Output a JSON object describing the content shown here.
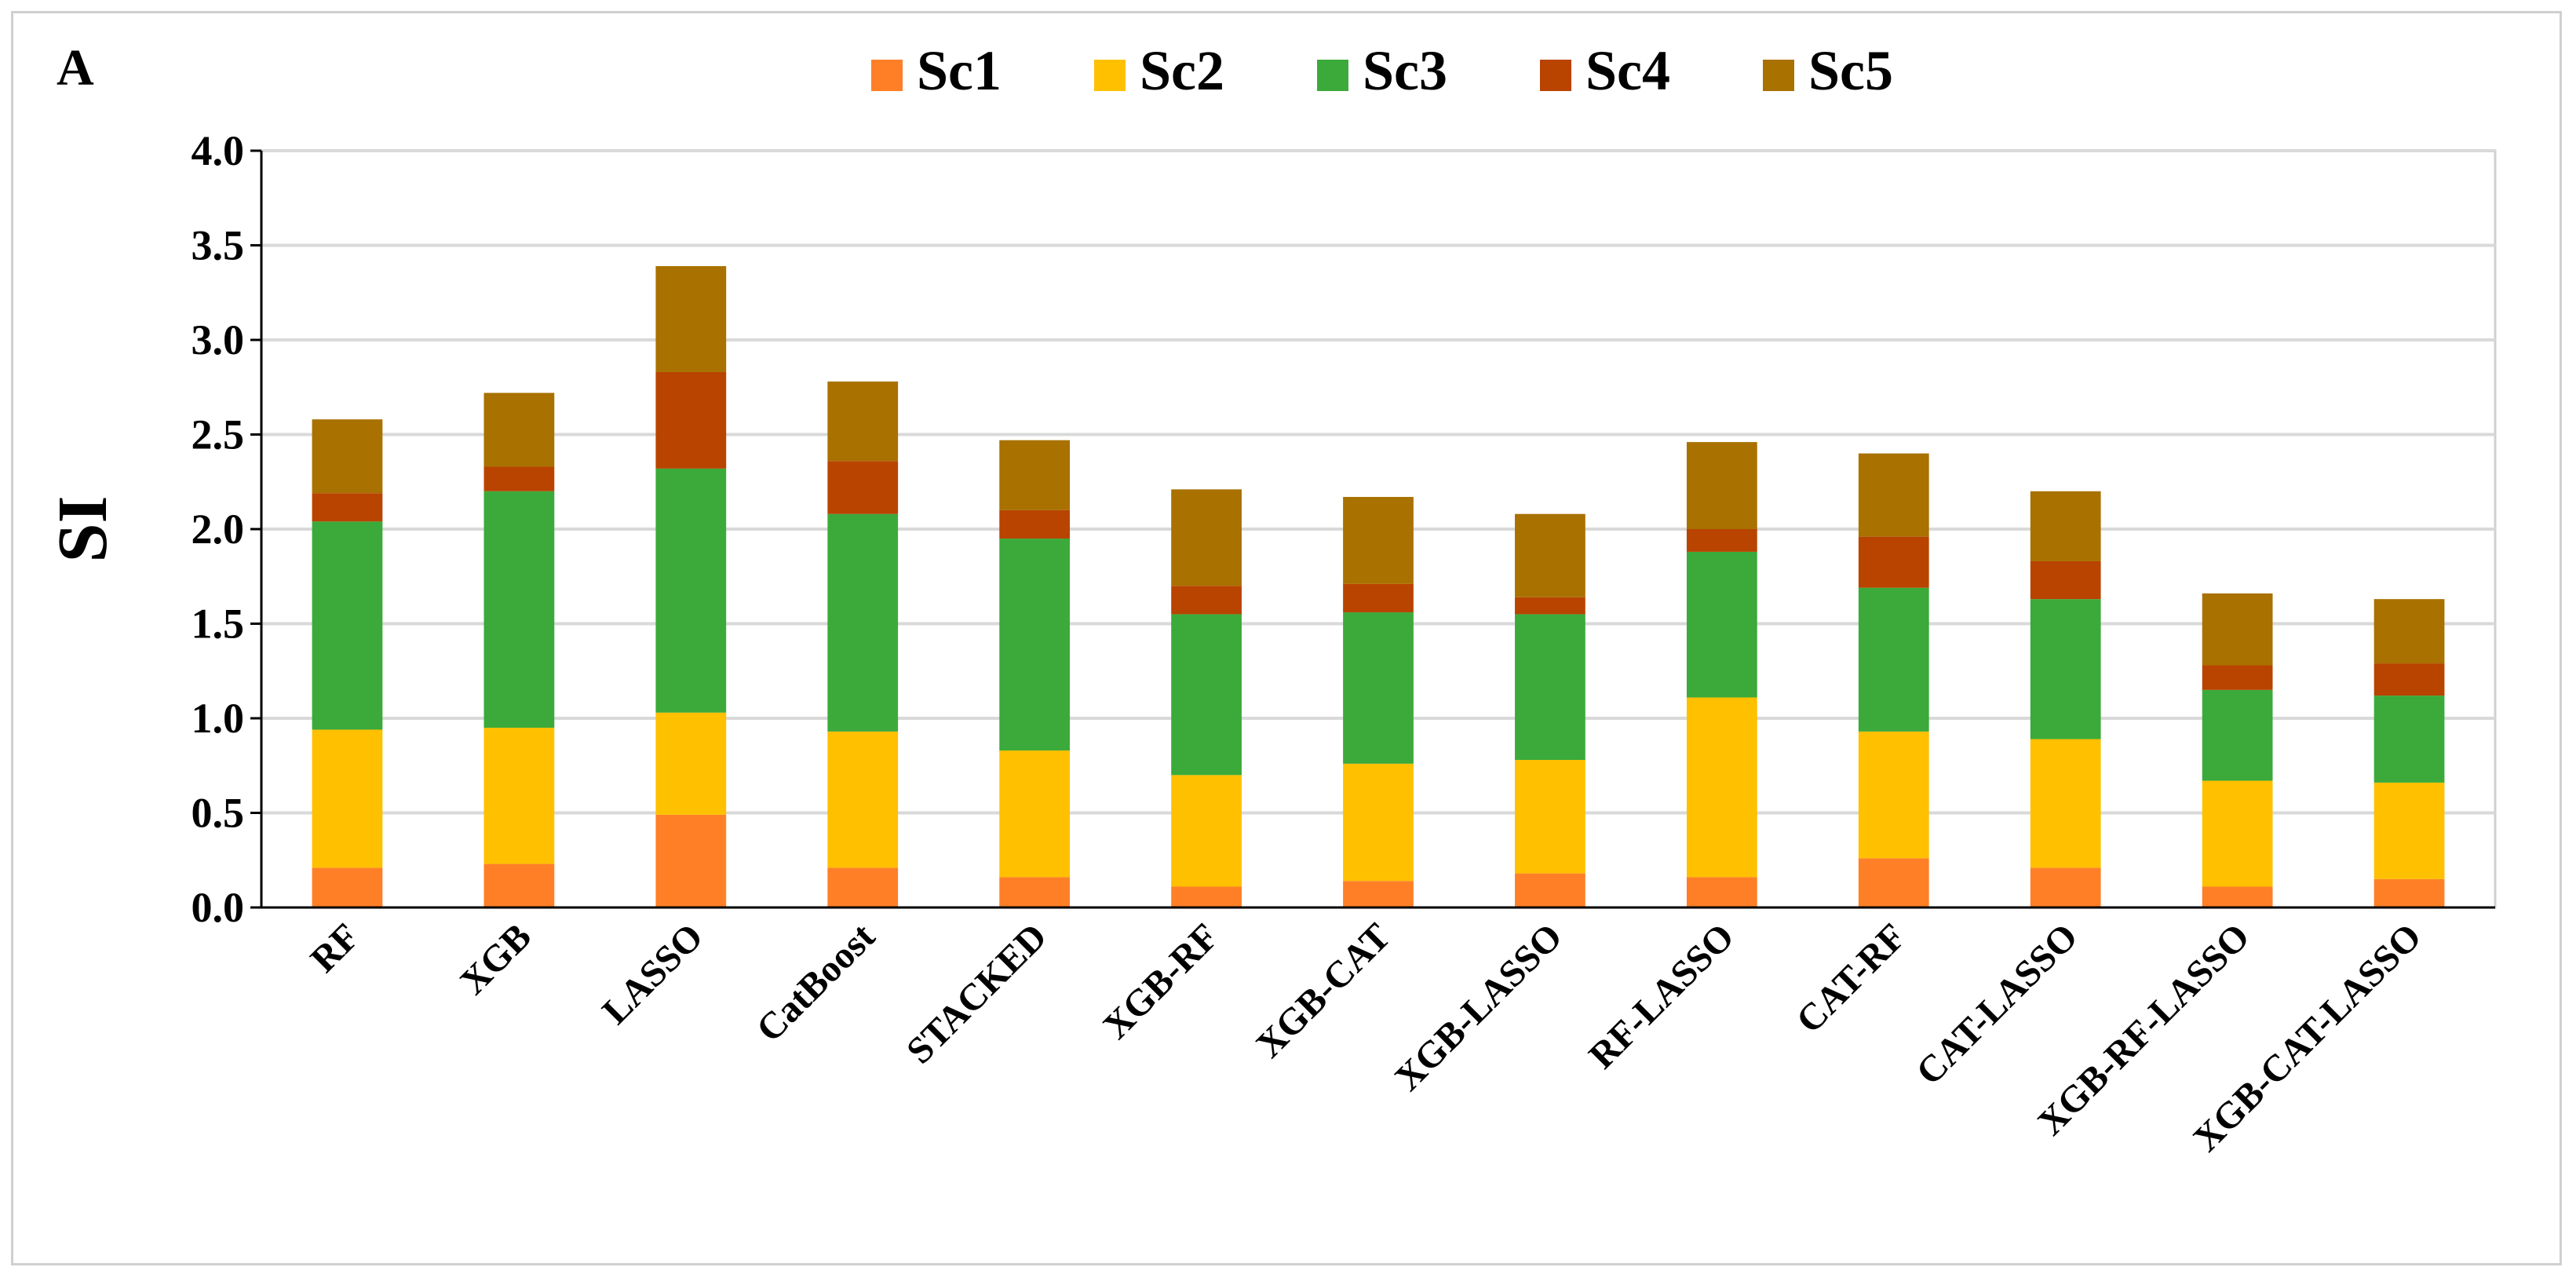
{
  "chart_data": {
    "type": "bar",
    "stacked": true,
    "panel_label": "A",
    "title": "",
    "xlabel": "",
    "ylabel": "SI",
    "ylim": [
      0,
      4
    ],
    "yticks": [
      "0.0",
      "0.5",
      "1.0",
      "1.5",
      "2.0",
      "2.5",
      "3.0",
      "3.5",
      "4.0"
    ],
    "grid": true,
    "legend_position": "top-center",
    "categories": [
      "RF",
      "XGB",
      "LASSO",
      "CatBoost",
      "STACKED",
      "XGB-RF",
      "XGB-CAT",
      "XGB-LASSO",
      "RF-LASSO",
      "CAT-RF",
      "CAT-LASSO",
      "XGB-RF-LASSO",
      "XGB-CAT-LASSO"
    ],
    "series": [
      {
        "name": "Sc1",
        "color": "#FF7F27",
        "values": [
          0.21,
          0.23,
          0.49,
          0.21,
          0.16,
          0.11,
          0.14,
          0.18,
          0.16,
          0.26,
          0.21,
          0.11,
          0.15
        ]
      },
      {
        "name": "Sc2",
        "color": "#FFC000",
        "values": [
          0.73,
          0.72,
          0.54,
          0.72,
          0.67,
          0.59,
          0.62,
          0.6,
          0.95,
          0.67,
          0.68,
          0.56,
          0.51
        ]
      },
      {
        "name": "Sc3",
        "color": "#3BAA3B",
        "values": [
          1.1,
          1.25,
          1.29,
          1.15,
          1.12,
          0.85,
          0.8,
          0.77,
          0.77,
          0.76,
          0.74,
          0.48,
          0.46
        ]
      },
      {
        "name": "Sc4",
        "color": "#B84400",
        "values": [
          0.15,
          0.13,
          0.51,
          0.28,
          0.15,
          0.15,
          0.15,
          0.09,
          0.12,
          0.27,
          0.2,
          0.13,
          0.17
        ]
      },
      {
        "name": "Sc5",
        "color": "#A87100",
        "values": [
          0.39,
          0.39,
          0.56,
          0.42,
          0.37,
          0.51,
          0.46,
          0.44,
          0.46,
          0.44,
          0.37,
          0.38,
          0.34
        ]
      }
    ]
  }
}
